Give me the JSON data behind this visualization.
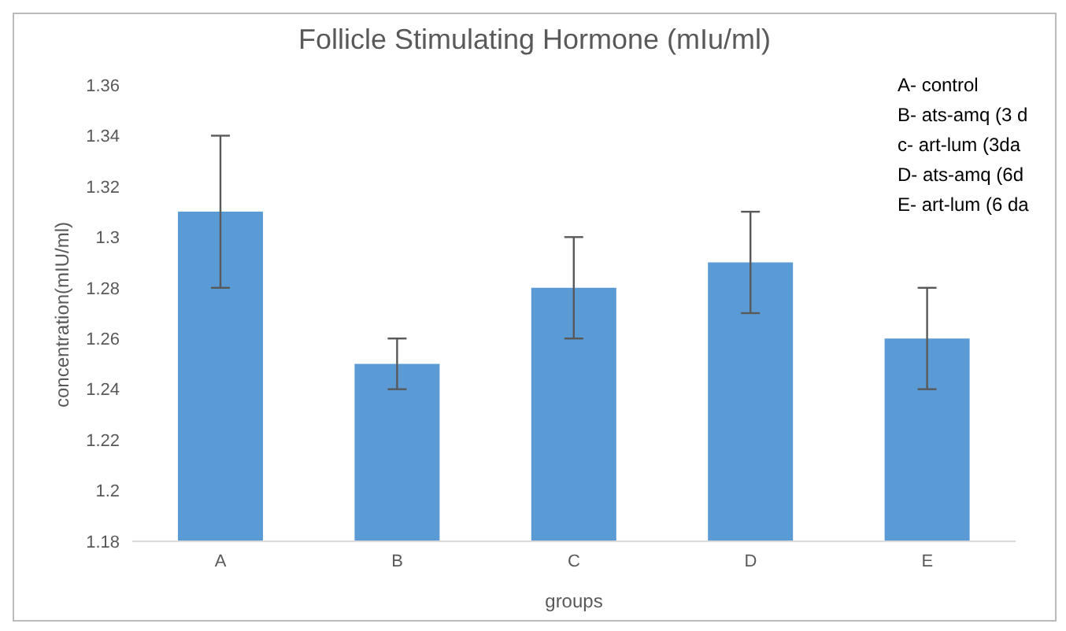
{
  "chart_data": {
    "type": "bar",
    "title": "Follicle Stimulating Hormone (mIu/ml)",
    "xlabel": "groups",
    "ylabel": "concentration(mIU/ml)",
    "categories": [
      "A",
      "B",
      "C",
      "D",
      "E"
    ],
    "values": [
      1.31,
      1.25,
      1.28,
      1.29,
      1.26
    ],
    "errors": [
      0.03,
      0.01,
      0.02,
      0.02,
      0.02
    ],
    "color": "#5b9bd5",
    "ylim": [
      1.18,
      1.36
    ],
    "yticks": [
      1.18,
      1.2,
      1.22,
      1.24,
      1.26,
      1.28,
      1.3,
      1.32,
      1.34,
      1.36
    ],
    "annotations": [
      "A- control",
      "B- ats-amq (3 d",
      "c- art-lum (3da",
      "D- ats-amq (6d",
      "E- art-lum (6 da"
    ]
  }
}
